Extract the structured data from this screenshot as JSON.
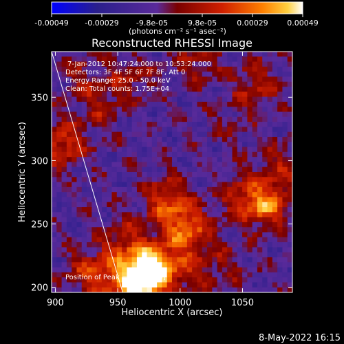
{
  "chart_data": {
    "type": "heatmap",
    "title": "Reconstructed RHESSI Image",
    "xlabel": "Heliocentric X (arcsec)",
    "ylabel": "Heliocentric Y (arcsec)",
    "xlim": [
      897,
      1090
    ],
    "ylim": [
      196,
      386
    ],
    "xticks": [
      "900",
      "950",
      "1000",
      "1050"
    ],
    "yticks": [
      "200",
      "250",
      "300",
      "350"
    ],
    "colorbar": {
      "ticks": [
        "-0.00049",
        "-0.00029",
        "-9.8e-05",
        "9.8e-05",
        "0.00029",
        "0.00049"
      ],
      "units": "(photons cm⁻² s⁻¹ asec⁻²)",
      "range": [
        -0.00049,
        0.00049
      ],
      "colormap": [
        "#0000ff",
        "#2a1f8c",
        "#5a2a9a",
        "#7a0000",
        "#d02000",
        "#ff8000",
        "#ffd040",
        "#ffffff"
      ]
    },
    "annotations": [
      "7-Jan-2012 10:47:24.000 to 10:53:24.000",
      "Detectors: 3F 4F 5F 6F 7F 8F, Att 0",
      "Energy Range: 25.0 - 50.0 keV",
      "Clean: Total counts: 1.75E+04"
    ],
    "peak_label": "Position of Peak = [968, 205]",
    "limb_line": {
      "x": [
        897,
        954
      ],
      "y": [
        386,
        196
      ]
    },
    "hot_spots": [
      {
        "x": 968,
        "y": 205,
        "v": 1.0
      },
      {
        "x": 978,
        "y": 215,
        "v": 0.85
      },
      {
        "x": 1005,
        "y": 245,
        "v": 0.75
      },
      {
        "x": 990,
        "y": 268,
        "v": 0.7
      },
      {
        "x": 955,
        "y": 235,
        "v": 0.6
      },
      {
        "x": 925,
        "y": 215,
        "v": 0.55
      },
      {
        "x": 940,
        "y": 205,
        "v": 0.6
      },
      {
        "x": 1070,
        "y": 265,
        "v": 0.75
      },
      {
        "x": 1050,
        "y": 270,
        "v": 0.6
      },
      {
        "x": 1080,
        "y": 295,
        "v": 0.55
      },
      {
        "x": 1035,
        "y": 215,
        "v": 0.5
      },
      {
        "x": 1005,
        "y": 215,
        "v": 0.55
      },
      {
        "x": 1060,
        "y": 360,
        "v": 0.6
      },
      {
        "x": 1015,
        "y": 378,
        "v": 0.55
      },
      {
        "x": 905,
        "y": 312,
        "v": 0.7
      },
      {
        "x": 935,
        "y": 345,
        "v": 0.55
      },
      {
        "x": 962,
        "y": 365,
        "v": 0.55
      },
      {
        "x": 1040,
        "y": 330,
        "v": 0.45
      },
      {
        "x": 920,
        "y": 370,
        "v": 0.5
      }
    ]
  },
  "footer": {
    "date": "8-May-2022 16:15"
  }
}
